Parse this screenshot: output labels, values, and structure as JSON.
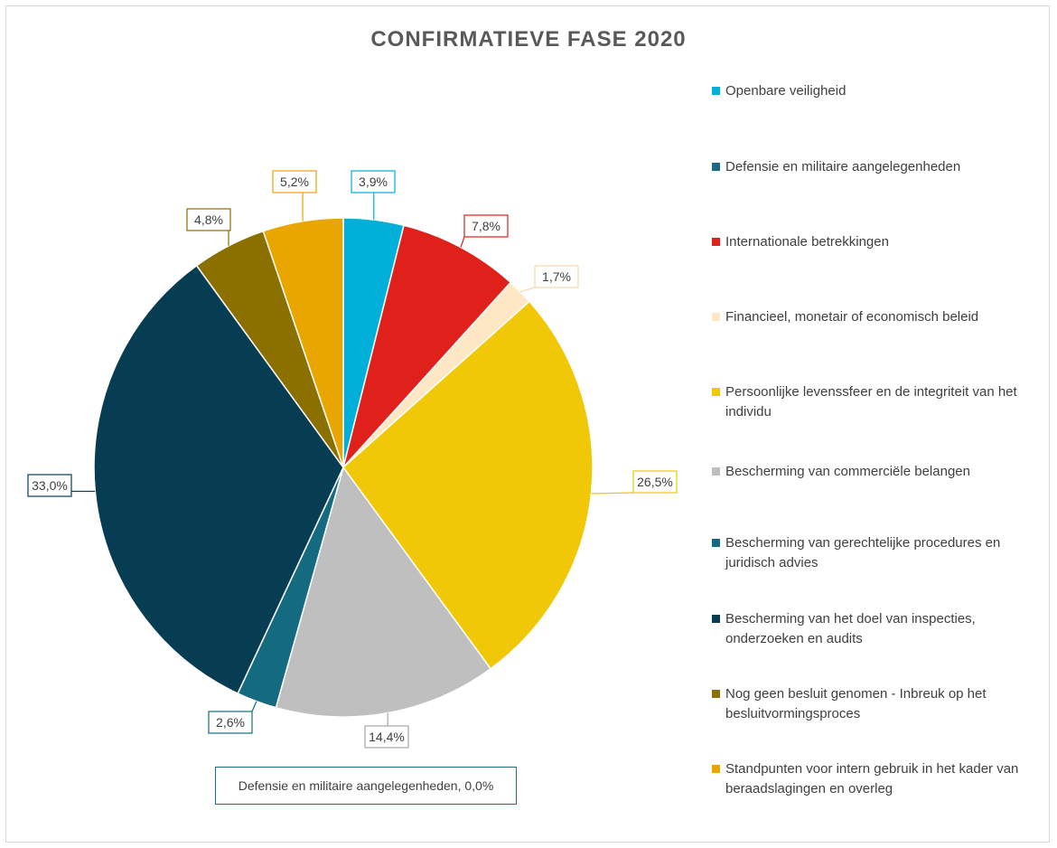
{
  "chart_data": {
    "type": "pie",
    "title": "CONFIRMATIEVE FASE 2020",
    "legend_position": "right",
    "slices": [
      {
        "label": "Openbare veiligheid",
        "value": 3.9,
        "value_label": "3,9%",
        "color": "#00b0d8"
      },
      {
        "label": "Defensie en militaire aangelegenheden",
        "value": 0.0,
        "value_label": "0,0%",
        "color": "#1d6a83"
      },
      {
        "label": "Internationale betrekkingen",
        "value": 7.8,
        "value_label": "7,8%",
        "color": "#e0201b"
      },
      {
        "label": "Financieel, monetair of economisch beleid",
        "value": 1.7,
        "value_label": "1,7%",
        "color": "#fde7c5"
      },
      {
        "label": "Persoonlijke levenssfeer en de integriteit van het individu",
        "value": 26.5,
        "value_label": "26,5%",
        "color": "#f0c808"
      },
      {
        "label": "Bescherming van commerciële belangen",
        "value": 14.4,
        "value_label": "14,4%",
        "color": "#bfbfbf"
      },
      {
        "label": "Bescherming van gerechtelijke procedures en juridisch advies",
        "value": 2.6,
        "value_label": "2,6%",
        "color": "#146a7f"
      },
      {
        "label": "Bescherming van het doel van inspecties, onderzoeken en audits",
        "value": 33.0,
        "value_label": "33,0%",
        "color": "#063d53"
      },
      {
        "label": "Nog geen besluit genomen - Inbreuk op het besluitvormingsproces",
        "value": 4.8,
        "value_label": "4,8%",
        "color": "#8b7000"
      },
      {
        "label": "Standpunten voor intern gebruik in het kader van beraadslagingen en overleg",
        "value": 5.2,
        "value_label": "5,2%",
        "color": "#e9a500"
      }
    ],
    "extra_label": "Defensie en militaire aangelegenheden, 0,0%"
  }
}
